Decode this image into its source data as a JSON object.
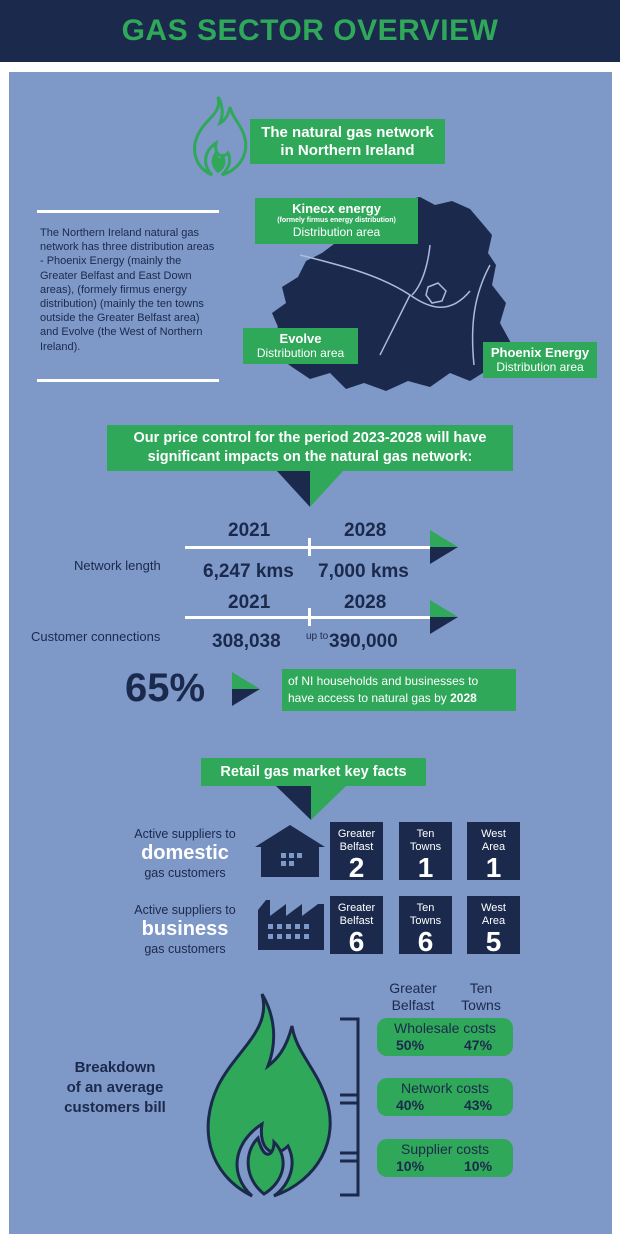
{
  "header": {
    "title": "GAS SECTOR OVERVIEW"
  },
  "network": {
    "title_line1": "The natural gas network",
    "title_line2": "in Northern Ireland",
    "description": "The Northern Ireland natural gas network has three distribution areas - Phoenix Energy (mainly the Greater Belfast and East Down areas), (formely firmus energy distribution) (mainly the ten towns outside the Greater Belfast area) and Evolve (the West of Northern Ireland).",
    "areas": [
      {
        "name": "Kinecx energy",
        "note": "(formely firmus energy distribution)",
        "sub": "Distribution area"
      },
      {
        "name": "Evolve",
        "sub": "Distribution area"
      },
      {
        "name": "Phoenix Energy",
        "sub": "Distribution area"
      }
    ]
  },
  "price_control": {
    "line1": "Our price control for the period 2023-2028 will have",
    "line2": "significant impacts on the natural gas network:",
    "rows": [
      {
        "label": "Network length",
        "year_from": "2021",
        "year_to": "2028",
        "value_from": "6,247 kms",
        "joiner": "",
        "value_to": "7,000 kms"
      },
      {
        "label": "Customer connections",
        "year_from": "2021",
        "year_to": "2028",
        "value_from": "308,038",
        "joiner": "up to",
        "value_to": "390,000"
      }
    ],
    "access": {
      "percent": "65%",
      "text_line1": "of NI households and businesses to",
      "text_line2": "have access to natural gas by",
      "year": "2028"
    }
  },
  "retail": {
    "title": "Retail gas market key facts",
    "domestic": {
      "pre": "Active suppliers to",
      "big": "domestic",
      "post": "gas customers",
      "areas": [
        {
          "l1": "Greater",
          "l2": "Belfast",
          "v": "2"
        },
        {
          "l1": "Ten",
          "l2": "Towns",
          "v": "1"
        },
        {
          "l1": "West",
          "l2": "Area",
          "v": "1"
        }
      ]
    },
    "business": {
      "pre": "Active suppliers to",
      "big": "business",
      "post": "gas customers",
      "areas": [
        {
          "l1": "Greater",
          "l2": "Belfast",
          "v": "6"
        },
        {
          "l1": "Ten",
          "l2": "Towns",
          "v": "6"
        },
        {
          "l1": "West",
          "l2": "Area",
          "v": "5"
        }
      ]
    }
  },
  "bill": {
    "line1": "Breakdown",
    "line2": "of an average",
    "line3": "customers bill",
    "col1_l1": "Greater",
    "col1_l2": "Belfast",
    "col2_l1": "Ten",
    "col2_l2": "Towns",
    "rows": [
      {
        "label": "Wholesale costs",
        "gb": "50%",
        "tt": "47%"
      },
      {
        "label": "Network costs",
        "gb": "40%",
        "tt": "43%"
      },
      {
        "label": "Supplier costs",
        "gb": "10%",
        "tt": "10%"
      }
    ]
  },
  "colors": {
    "navy": "#1b2a4c",
    "green": "#2fa85a",
    "panel": "#7e98c8"
  }
}
